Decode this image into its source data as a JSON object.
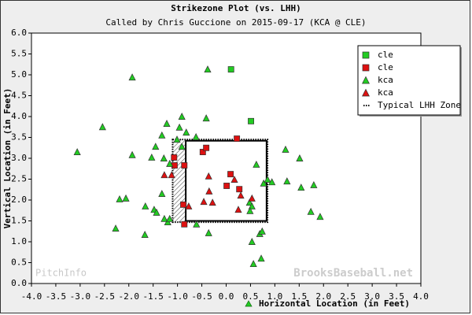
{
  "chart_data": {
    "type": "scatter",
    "title": "Strikezone Plot (vs. LHH)",
    "subtitle": "Called by Chris Guccione on 2015-09-17 (KCA @ CLE)",
    "x_label": "Horizontal Location (in Feet)",
    "y_label": "Vertical Location (in Feet)",
    "watermarks": [
      "PitchInfo",
      "BrooksBaseball.net"
    ],
    "xlim": [
      -4,
      4
    ],
    "ylim": [
      0,
      6
    ],
    "xticks": [
      {
        "value": -4,
        "label": "-4.0"
      },
      -3.5,
      {
        "value": -3,
        "label": "-3.0"
      },
      -2.5,
      {
        "value": -2,
        "label": "-2.0"
      },
      -1.5,
      {
        "value": -1,
        "label": "-1.0"
      },
      -0.5,
      {
        "value": 0,
        "label": "0.0"
      },
      0.5,
      {
        "value": 1,
        "label": "1.0"
      },
      1.5,
      {
        "value": 2,
        "label": "2.0"
      },
      2.5,
      {
        "value": 3,
        "label": "3.0"
      },
      3.5,
      {
        "value": 4,
        "label": "4.0"
      }
    ],
    "yticks": [
      {
        "value": 0,
        "label": "0.0"
      },
      0.5,
      {
        "value": 1,
        "label": "1.0"
      },
      1.5,
      {
        "value": 2,
        "label": "2.0"
      },
      2.5,
      {
        "value": 3,
        "label": "3.0"
      },
      3.5,
      {
        "value": 4,
        "label": "4.0"
      },
      4.5,
      {
        "value": 5,
        "label": "5.0"
      },
      5.5,
      {
        "value": 6,
        "label": "6.0"
      }
    ],
    "grid": false,
    "legend": "upper right",
    "strike_zone": {
      "x": [
        -0.83,
        0.83
      ],
      "y": [
        1.5,
        3.42
      ]
    },
    "series": [
      {
        "name": "cle",
        "marker": "square",
        "color": "#22cc22",
        "x": [
          0.1,
          0.51
        ],
        "y": [
          5.13,
          3.89
        ]
      },
      {
        "name": "cle",
        "marker": "square",
        "color": "#dd1111",
        "x": [
          -1.07,
          -1.06,
          -0.86,
          -0.88,
          -0.86,
          -0.48,
          -0.41,
          0.01,
          0.09,
          0.22,
          0.27
        ],
        "y": [
          3.02,
          2.83,
          2.83,
          1.89,
          1.42,
          3.15,
          3.25,
          2.34,
          2.62,
          3.47,
          2.26
        ]
      },
      {
        "name": "kca",
        "marker": "triangle",
        "color": "#22cc22",
        "x": [
          -1.93,
          -0.38,
          -2.54,
          -3.06,
          -0.91,
          -0.41,
          -1.22,
          -0.96,
          -0.82,
          -1.32,
          -1.01,
          -1.45,
          -1.93,
          -1.53,
          -1.28,
          -1.16,
          -0.62,
          -0.91,
          1.22,
          1.51,
          1.25,
          1.54,
          1.8,
          0.62,
          0.77,
          0.85,
          0.94,
          -2.19,
          -2.06,
          -1.32,
          -1.66,
          -1.48,
          -1.43,
          -1.27,
          -1.2,
          -1.16,
          -2.27,
          -1.67,
          -0.36,
          -0.61,
          0.48,
          0.53,
          0.49,
          0.69,
          0.74,
          0.53,
          0.56,
          0.72,
          1.74,
          1.93
        ],
        "y": [
          4.94,
          5.13,
          3.75,
          3.15,
          4.0,
          3.96,
          3.83,
          3.74,
          3.62,
          3.55,
          3.45,
          3.28,
          3.08,
          3.02,
          3.0,
          2.87,
          3.51,
          3.28,
          3.21,
          3.0,
          2.45,
          2.3,
          2.36,
          2.85,
          2.4,
          2.49,
          2.43,
          2.02,
          2.04,
          2.15,
          1.85,
          1.77,
          1.7,
          1.55,
          1.47,
          1.55,
          1.32,
          1.17,
          1.21,
          1.42,
          1.94,
          1.85,
          1.74,
          1.19,
          1.25,
          1.0,
          0.47,
          0.6,
          1.72,
          1.6
        ]
      },
      {
        "name": "kca",
        "marker": "triangle",
        "color": "#dd1111",
        "x": [
          -1.27,
          -1.12,
          -0.77,
          -0.46,
          -0.36,
          -0.35,
          -0.28,
          0.17,
          0.25,
          0.3,
          0.53
        ],
        "y": [
          2.6,
          2.6,
          1.85,
          1.96,
          2.57,
          2.21,
          1.94,
          2.49,
          1.77,
          2.11,
          2.04
        ]
      },
      {
        "name": "Typical LHH Zone",
        "marker": "zone",
        "color": "#000000",
        "x": [
          -1.1,
          0.85
        ],
        "y": [
          1.47,
          3.45
        ]
      }
    ]
  }
}
